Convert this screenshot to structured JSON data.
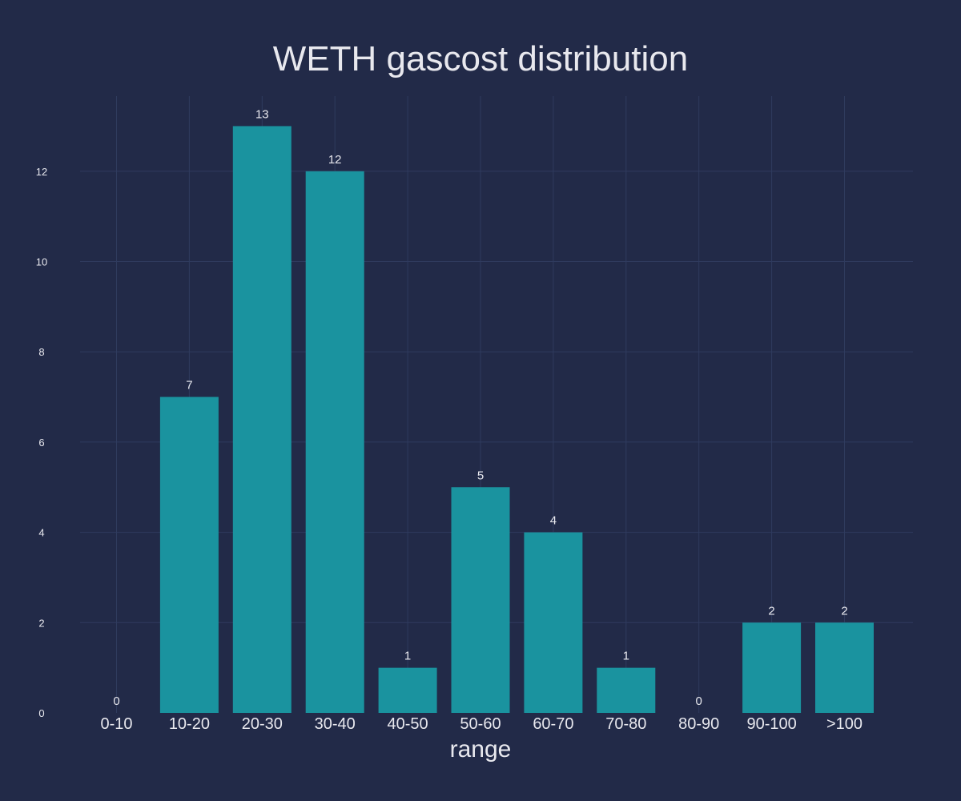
{
  "chart_data": {
    "type": "bar",
    "title": "WETH gascost distribution",
    "xlabel": "range",
    "ylabel": "",
    "categories": [
      "0-10",
      "10-20",
      "20-30",
      "30-40",
      "40-50",
      "50-60",
      "60-70",
      "70-80",
      "80-90",
      "90-100",
      ">100"
    ],
    "values": [
      0,
      7,
      13,
      12,
      1,
      5,
      4,
      1,
      0,
      2,
      2
    ],
    "data_labels": [
      "0",
      "7",
      "13",
      "12",
      "1",
      "5",
      "4",
      "1",
      "0",
      "2",
      "2"
    ],
    "yticks": [
      0,
      2,
      4,
      6,
      8,
      10,
      12
    ],
    "ylim": [
      0,
      13.68
    ],
    "grid": true,
    "colors": {
      "background": "#222a48",
      "bar": "#1a939f",
      "grid": "#2f3b5e",
      "text": "#e8e8ee"
    }
  }
}
